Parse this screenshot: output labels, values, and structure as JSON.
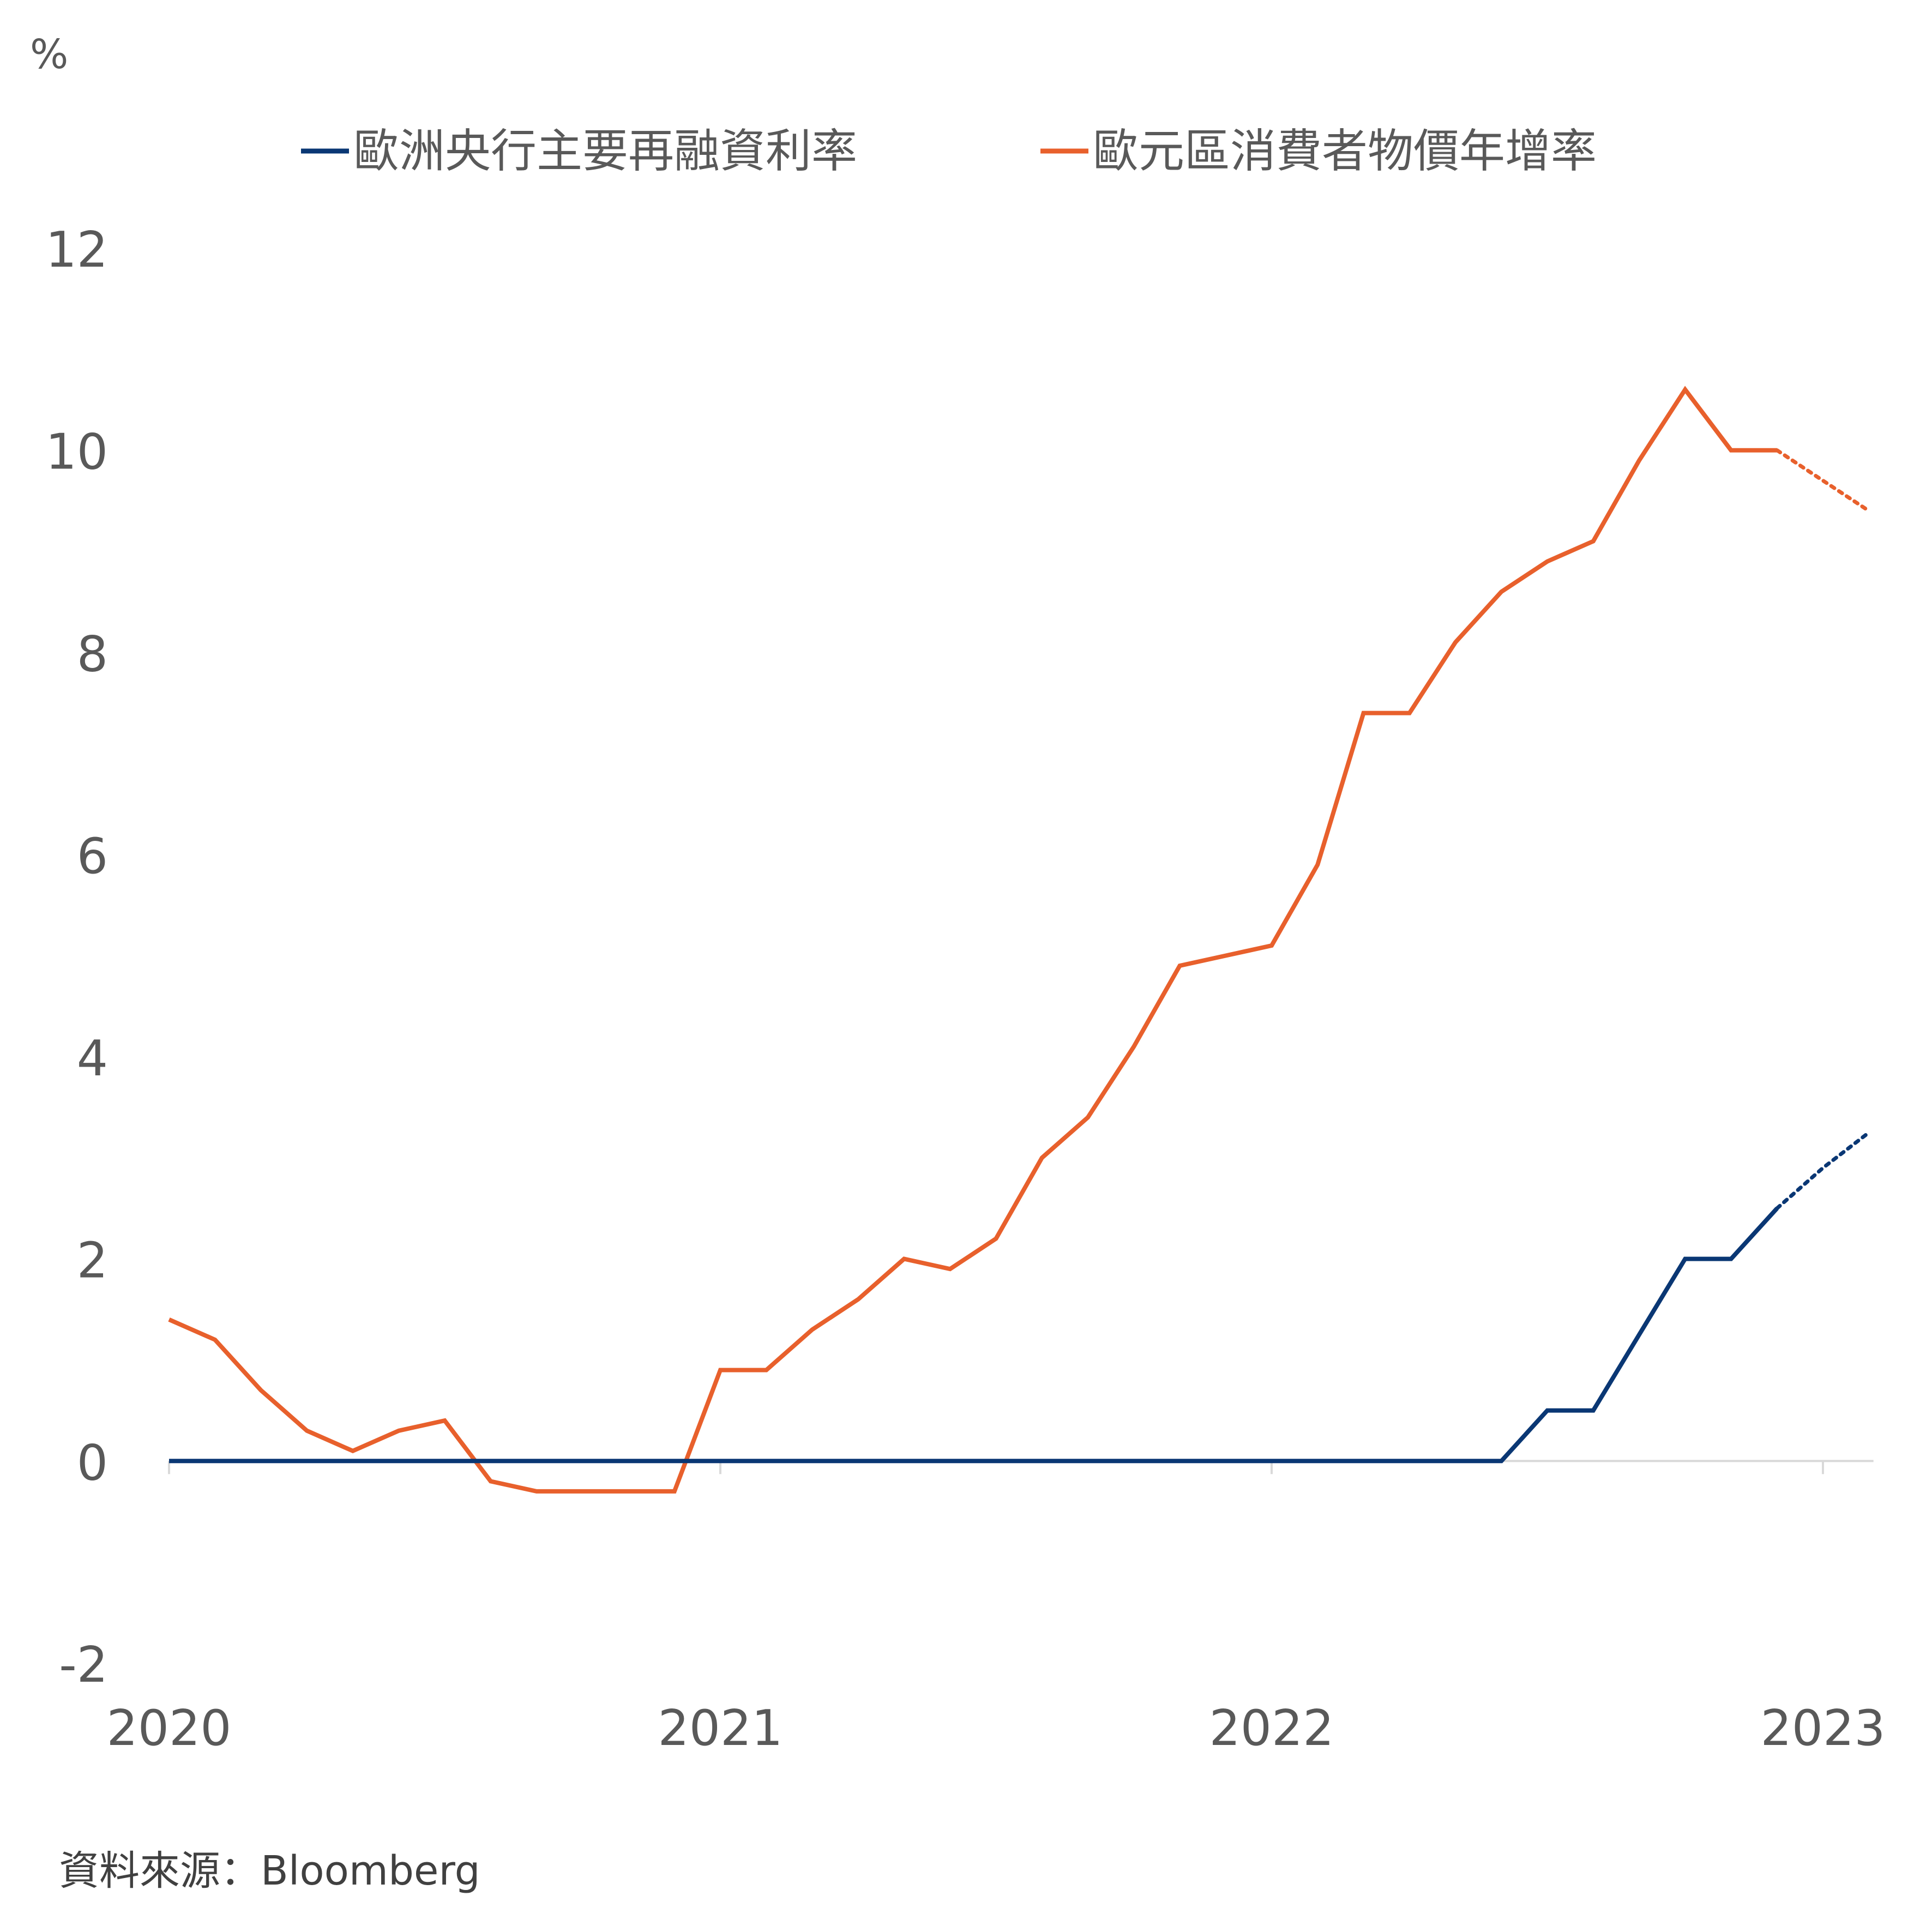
{
  "chart_data": {
    "type": "line",
    "unit_label": "%",
    "source_note": "資料來源：Bloomberg",
    "x_ticks": [
      "2020",
      "2021",
      "2022",
      "2023"
    ],
    "y_ticks": [
      "12",
      "10",
      "8",
      "6",
      "4",
      "2",
      "0",
      "-2"
    ],
    "ylim": [
      -2,
      12
    ],
    "xlim": [
      "2020-01",
      "2023-02"
    ],
    "grid": false,
    "legend_position": "top",
    "colors": {
      "ecb_rate": "#0a3774",
      "cpi": "#e8602c",
      "axis": "#d9d9d9",
      "text": "#595959"
    },
    "x": [
      "2020-01",
      "2020-02",
      "2020-03",
      "2020-04",
      "2020-05",
      "2020-06",
      "2020-07",
      "2020-08",
      "2020-09",
      "2020-10",
      "2020-11",
      "2020-12",
      "2021-01",
      "2021-02",
      "2021-03",
      "2021-04",
      "2021-05",
      "2021-06",
      "2021-07",
      "2021-08",
      "2021-09",
      "2021-10",
      "2021-11",
      "2021-12",
      "2022-01",
      "2022-02",
      "2022-03",
      "2022-04",
      "2022-05",
      "2022-06",
      "2022-07",
      "2022-08",
      "2022-09",
      "2022-10",
      "2022-11",
      "2022-12",
      "2023-01",
      "2023-02"
    ],
    "series": [
      {
        "name": "歐洲央行主要再融資利率",
        "color": "#0a3774",
        "values": [
          0,
          0,
          0,
          0,
          0,
          0,
          0,
          0,
          0,
          0,
          0,
          0,
          0,
          0,
          0,
          0,
          0,
          0,
          0,
          0,
          0,
          0,
          0,
          0,
          0,
          0,
          0,
          0,
          0,
          0,
          0.5,
          0.5,
          1.25,
          2,
          2,
          2.5,
          null,
          null
        ],
        "forecast": [
          {
            "x": "2022-12",
            "y": 2.5
          },
          {
            "x": "2023-01",
            "y": 2.9
          },
          {
            "x": "2023-02",
            "y": 3.25
          }
        ]
      },
      {
        "name": "歐元區消費者物價年增率",
        "color": "#e8602c",
        "values": [
          1.4,
          1.2,
          0.7,
          0.3,
          0.1,
          0.3,
          0.4,
          -0.2,
          -0.3,
          -0.3,
          -0.3,
          -0.3,
          0.9,
          0.9,
          1.3,
          1.6,
          2.0,
          1.9,
          2.2,
          3.0,
          3.4,
          4.1,
          4.9,
          5.0,
          5.1,
          5.9,
          7.4,
          7.4,
          8.1,
          8.6,
          8.9,
          9.1,
          9.9,
          10.6,
          10.0,
          10.0,
          null,
          null
        ],
        "forecast": [
          {
            "x": "2022-12",
            "y": 10.0
          },
          {
            "x": "2023-01",
            "y": 9.7
          },
          {
            "x": "2023-02",
            "y": 9.4
          }
        ]
      }
    ]
  }
}
